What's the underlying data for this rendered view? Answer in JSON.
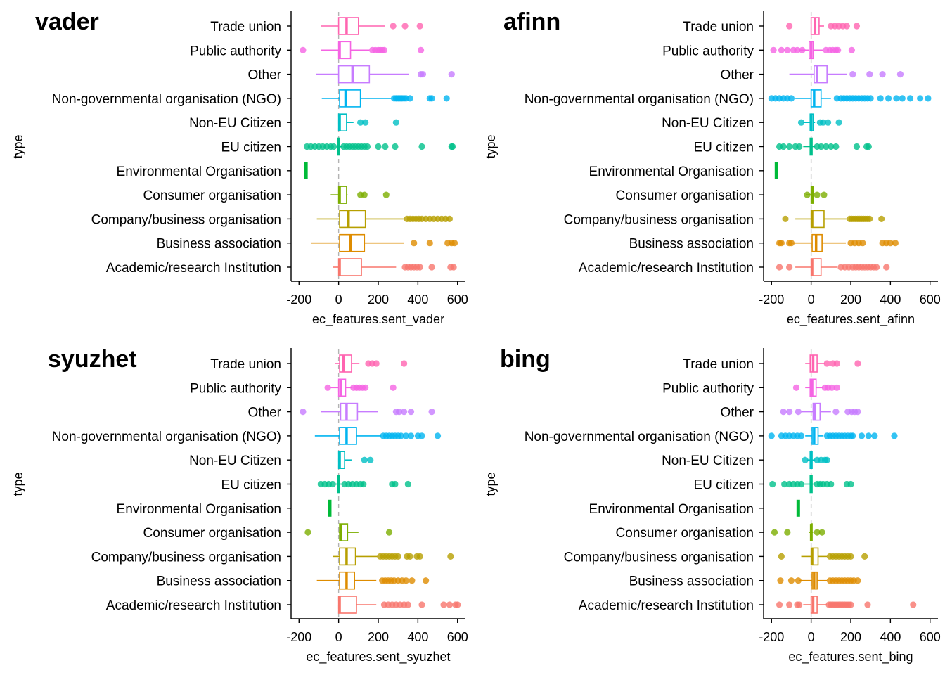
{
  "categories": [
    "Academic/research Institution",
    "Business association",
    "Company/business organisation",
    "Consumer organisation",
    "Environmental Organisation",
    "EU citizen",
    "Non-EU Citizen",
    "Non-governmental organisation (NGO)",
    "Other",
    "Public authority",
    "Trade union"
  ],
  "colors": [
    "#F8766D",
    "#DE8C00",
    "#B79F00",
    "#7CAE00",
    "#00BA38",
    "#00C08B",
    "#00BFC4",
    "#00B4F0",
    "#C77CFF",
    "#F564E3",
    "#FF64B0"
  ],
  "chart_data": [
    {
      "type": "boxplot",
      "title": "vader",
      "xlabel": "ec_features.sent_vader",
      "ylabel": "type",
      "xlim": [
        -240,
        640
      ],
      "xticks": [
        -200,
        0,
        200,
        400,
        600
      ],
      "xtick_labels": [
        "-200",
        "0",
        "200",
        "400",
        "600"
      ],
      "legend": "none",
      "boxes": [
        {
          "whisker": [
            -30,
            290
          ],
          "q1": 0,
          "median": 5,
          "q3": 115,
          "outliers": [
            335,
            350,
            365,
            380,
            395,
            410,
            470,
            565,
            580
          ]
        },
        {
          "whisker": [
            -140,
            330
          ],
          "q1": 5,
          "median": 60,
          "q3": 130,
          "outliers": [
            380,
            460,
            550,
            570,
            585
          ]
        },
        {
          "whisker": [
            -110,
            335
          ],
          "q1": 5,
          "median": 50,
          "q3": 135,
          "outliers": [
            345,
            360,
            375,
            390,
            405,
            420,
            440,
            460,
            480,
            500,
            520,
            540,
            560
          ]
        },
        {
          "whisker": [
            -40,
            45
          ],
          "q1": 0,
          "median": 5,
          "q3": 40,
          "outliers": [
            110,
            130,
            240
          ]
        },
        {
          "whisker": [
            -165,
            -165
          ],
          "q1": -165,
          "median": -165,
          "q3": -165,
          "outliers": []
        },
        {
          "whisker": [
            -10,
            20
          ],
          "q1": -5,
          "median": 0,
          "q3": 5,
          "outliers": [
            -160,
            -140,
            -120,
            -100,
            -80,
            -60,
            -40,
            -25,
            25,
            40,
            55,
            70,
            85,
            100,
            115,
            130,
            145,
            200,
            235,
            285,
            420,
            570,
            575
          ]
        },
        {
          "whisker": [
            0,
            75
          ],
          "q1": 0,
          "median": 5,
          "q3": 40,
          "outliers": [
            110,
            135,
            290
          ]
        },
        {
          "whisker": [
            -85,
            265
          ],
          "q1": 5,
          "median": 35,
          "q3": 110,
          "outliers": [
            280,
            290,
            300,
            310,
            320,
            330,
            340,
            360,
            460,
            470,
            545
          ]
        },
        {
          "whisker": [
            -115,
            355
          ],
          "q1": 0,
          "median": 70,
          "q3": 155,
          "outliers": [
            415,
            425,
            570
          ]
        },
        {
          "whisker": [
            -90,
            155
          ],
          "q1": 0,
          "median": 5,
          "q3": 60,
          "outliers": [
            -180,
            170,
            185,
            200,
            210,
            220,
            230,
            415
          ]
        },
        {
          "whisker": [
            -90,
            235
          ],
          "q1": 0,
          "median": 40,
          "q3": 100,
          "outliers": [
            275,
            335,
            410
          ]
        }
      ]
    },
    {
      "type": "boxplot",
      "title": "afinn",
      "xlabel": "ec_features.sent_afinn",
      "ylabel": "type",
      "xlim": [
        -240,
        640
      ],
      "xticks": [
        -200,
        0,
        200,
        400,
        600
      ],
      "xtick_labels": [
        "-200",
        "0",
        "200",
        "400",
        "600"
      ],
      "legend": "none",
      "boxes": [
        {
          "whisker": [
            -80,
            130
          ],
          "q1": 0,
          "median": 5,
          "q3": 50,
          "outliers": [
            -160,
            -110,
            150,
            170,
            190,
            210,
            225,
            240,
            255,
            270,
            285,
            300,
            315,
            330,
            380
          ]
        },
        {
          "whisker": [
            -100,
            175
          ],
          "q1": 5,
          "median": 25,
          "q3": 55,
          "outliers": [
            -160,
            -150,
            -110,
            -100,
            200,
            220,
            240,
            260,
            360,
            380,
            400,
            425
          ]
        },
        {
          "whisker": [
            -80,
            180
          ],
          "q1": 0,
          "median": 5,
          "q3": 65,
          "outliers": [
            -130,
            195,
            205,
            215,
            225,
            235,
            245,
            255,
            265,
            275,
            285,
            295,
            355
          ]
        },
        {
          "whisker": [
            -25,
            10
          ],
          "q1": 0,
          "median": 5,
          "q3": 10,
          "outliers": [
            -20,
            30,
            65
          ]
        },
        {
          "whisker": [
            -175,
            -175
          ],
          "q1": -175,
          "median": -175,
          "q3": -175,
          "outliers": []
        },
        {
          "whisker": [
            -40,
            20
          ],
          "q1": -5,
          "median": 0,
          "q3": 5,
          "outliers": [
            -160,
            -140,
            -110,
            -80,
            -60,
            30,
            50,
            75,
            100,
            125,
            230,
            280,
            290
          ]
        },
        {
          "whisker": [
            -40,
            20
          ],
          "q1": -5,
          "median": 0,
          "q3": 10,
          "outliers": [
            -50,
            45,
            60,
            85,
            140
          ]
        },
        {
          "whisker": [
            -80,
            100
          ],
          "q1": 0,
          "median": 15,
          "q3": 50,
          "outliers": [
            -200,
            -180,
            -160,
            -140,
            -120,
            -100,
            130,
            150,
            165,
            180,
            195,
            210,
            225,
            240,
            255,
            270,
            285,
            300,
            350,
            390,
            430,
            460,
            500,
            550,
            590
          ]
        },
        {
          "whisker": [
            -110,
            180
          ],
          "q1": 15,
          "median": 30,
          "q3": 80,
          "outliers": [
            210,
            295,
            360,
            450
          ]
        },
        {
          "whisker": [
            -60,
            60
          ],
          "q1": -10,
          "median": 0,
          "q3": 10,
          "outliers": [
            -190,
            -150,
            -120,
            -90,
            -70,
            -45,
            75,
            95,
            110,
            125,
            135,
            205
          ]
        },
        {
          "whisker": [
            0,
            65
          ],
          "q1": 0,
          "median": 20,
          "q3": 40,
          "outliers": [
            -110,
            100,
            120,
            140,
            160,
            180,
            230
          ]
        }
      ]
    },
    {
      "type": "boxplot",
      "title": "syuzhet",
      "xlabel": "ec_features.sent_syuzhet",
      "ylabel": "type",
      "xlim": [
        -240,
        640
      ],
      "xticks": [
        -200,
        0,
        200,
        400,
        600
      ],
      "xtick_labels": [
        "-200",
        "0",
        "200",
        "400",
        "600"
      ],
      "legend": "none",
      "boxes": [
        {
          "whisker": [
            0,
            190
          ],
          "q1": 0,
          "median": 5,
          "q3": 90,
          "outliers": [
            230,
            250,
            270,
            290,
            310,
            330,
            350,
            420,
            530,
            560,
            590,
            600
          ]
        },
        {
          "whisker": [
            -110,
            190
          ],
          "q1": 5,
          "median": 40,
          "q3": 80,
          "outliers": [
            220,
            235,
            250,
            265,
            280,
            300,
            320,
            340,
            370,
            440
          ]
        },
        {
          "whisker": [
            -30,
            195
          ],
          "q1": 5,
          "median": 40,
          "q3": 85,
          "outliers": [
            210,
            225,
            240,
            255,
            270,
            285,
            300,
            345,
            360,
            395,
            410,
            565
          ]
        },
        {
          "whisker": [
            0,
            100
          ],
          "q1": 5,
          "median": 10,
          "q3": 45,
          "outliers": [
            -155,
            255
          ]
        },
        {
          "whisker": [
            -45,
            -45
          ],
          "q1": -45,
          "median": -45,
          "q3": -45,
          "outliers": []
        },
        {
          "whisker": [
            -20,
            20
          ],
          "q1": -5,
          "median": 0,
          "q3": 5,
          "outliers": [
            -90,
            -70,
            -50,
            -30,
            30,
            50,
            70,
            90,
            110,
            125,
            270,
            285,
            350
          ]
        },
        {
          "whisker": [
            0,
            65
          ],
          "q1": 0,
          "median": 5,
          "q3": 30,
          "outliers": [
            130,
            160
          ]
        },
        {
          "whisker": [
            -120,
            215
          ],
          "q1": 5,
          "median": 40,
          "q3": 90,
          "outliers": [
            225,
            240,
            255,
            270,
            285,
            300,
            315,
            340,
            365,
            400,
            420,
            500
          ]
        },
        {
          "whisker": [
            -90,
            200
          ],
          "q1": 10,
          "median": 40,
          "q3": 95,
          "outliers": [
            -180,
            290,
            305,
            330,
            365,
            470
          ]
        },
        {
          "whisker": [
            -40,
            70
          ],
          "q1": 0,
          "median": 10,
          "q3": 35,
          "outliers": [
            -55,
            75,
            90,
            105,
            120,
            135,
            275
          ]
        },
        {
          "whisker": [
            -20,
            105
          ],
          "q1": 5,
          "median": 25,
          "q3": 65,
          "outliers": [
            150,
            170,
            190,
            330
          ]
        }
      ]
    },
    {
      "type": "boxplot",
      "title": "bing",
      "xlabel": "ec_features.sent_bing",
      "ylabel": "type",
      "xlim": [
        -240,
        640
      ],
      "xticks": [
        -200,
        0,
        200,
        400,
        600
      ],
      "xtick_labels": [
        "-200",
        "0",
        "200",
        "400",
        "600"
      ],
      "legend": "none",
      "boxes": [
        {
          "whisker": [
            -40,
            80
          ],
          "q1": 0,
          "median": 10,
          "q3": 30,
          "outliers": [
            -160,
            -110,
            -70,
            -60,
            90,
            100,
            110,
            120,
            130,
            140,
            150,
            160,
            170,
            180,
            190,
            200,
            285,
            515
          ]
        },
        {
          "whisker": [
            -60,
            80
          ],
          "q1": 5,
          "median": 15,
          "q3": 30,
          "outliers": [
            -155,
            -100,
            -65,
            95,
            110,
            125,
            140,
            155,
            170,
            185,
            200,
            215,
            235
          ]
        },
        {
          "whisker": [
            -50,
            80
          ],
          "q1": 0,
          "median": 5,
          "q3": 35,
          "outliers": [
            -150,
            95,
            110,
            125,
            140,
            155,
            170,
            185,
            200,
            270
          ]
        },
        {
          "whisker": [
            -10,
            10
          ],
          "q1": 0,
          "median": 0,
          "q3": 5,
          "outliers": [
            -185,
            -120,
            30,
            55
          ]
        },
        {
          "whisker": [
            -65,
            -65
          ],
          "q1": -65,
          "median": -65,
          "q3": -65,
          "outliers": []
        },
        {
          "whisker": [
            -40,
            20
          ],
          "q1": -5,
          "median": 0,
          "q3": 5,
          "outliers": [
            -195,
            -135,
            -110,
            -90,
            -70,
            -50,
            30,
            45,
            60,
            80,
            100,
            180,
            200
          ]
        },
        {
          "whisker": [
            -20,
            20
          ],
          "q1": -5,
          "median": 0,
          "q3": 5,
          "outliers": [
            -30,
            30,
            50,
            70,
            80
          ]
        },
        {
          "whisker": [
            -30,
            60
          ],
          "q1": 5,
          "median": 15,
          "q3": 35,
          "outliers": [
            -200,
            -150,
            -130,
            -110,
            -90,
            -70,
            -50,
            80,
            95,
            110,
            125,
            140,
            155,
            170,
            185,
            200,
            210,
            255,
            290,
            320,
            420
          ]
        },
        {
          "whisker": [
            -50,
            100
          ],
          "q1": 10,
          "median": 20,
          "q3": 45,
          "outliers": [
            -140,
            -110,
            -65,
            125,
            185,
            205,
            220,
            235
          ]
        },
        {
          "whisker": [
            -30,
            60
          ],
          "q1": -5,
          "median": 5,
          "q3": 25,
          "outliers": [
            -75,
            70,
            85,
            105,
            130
          ]
        },
        {
          "whisker": [
            -30,
            70
          ],
          "q1": -5,
          "median": 10,
          "q3": 30,
          "outliers": [
            80,
            110,
            130,
            235
          ]
        }
      ]
    }
  ]
}
